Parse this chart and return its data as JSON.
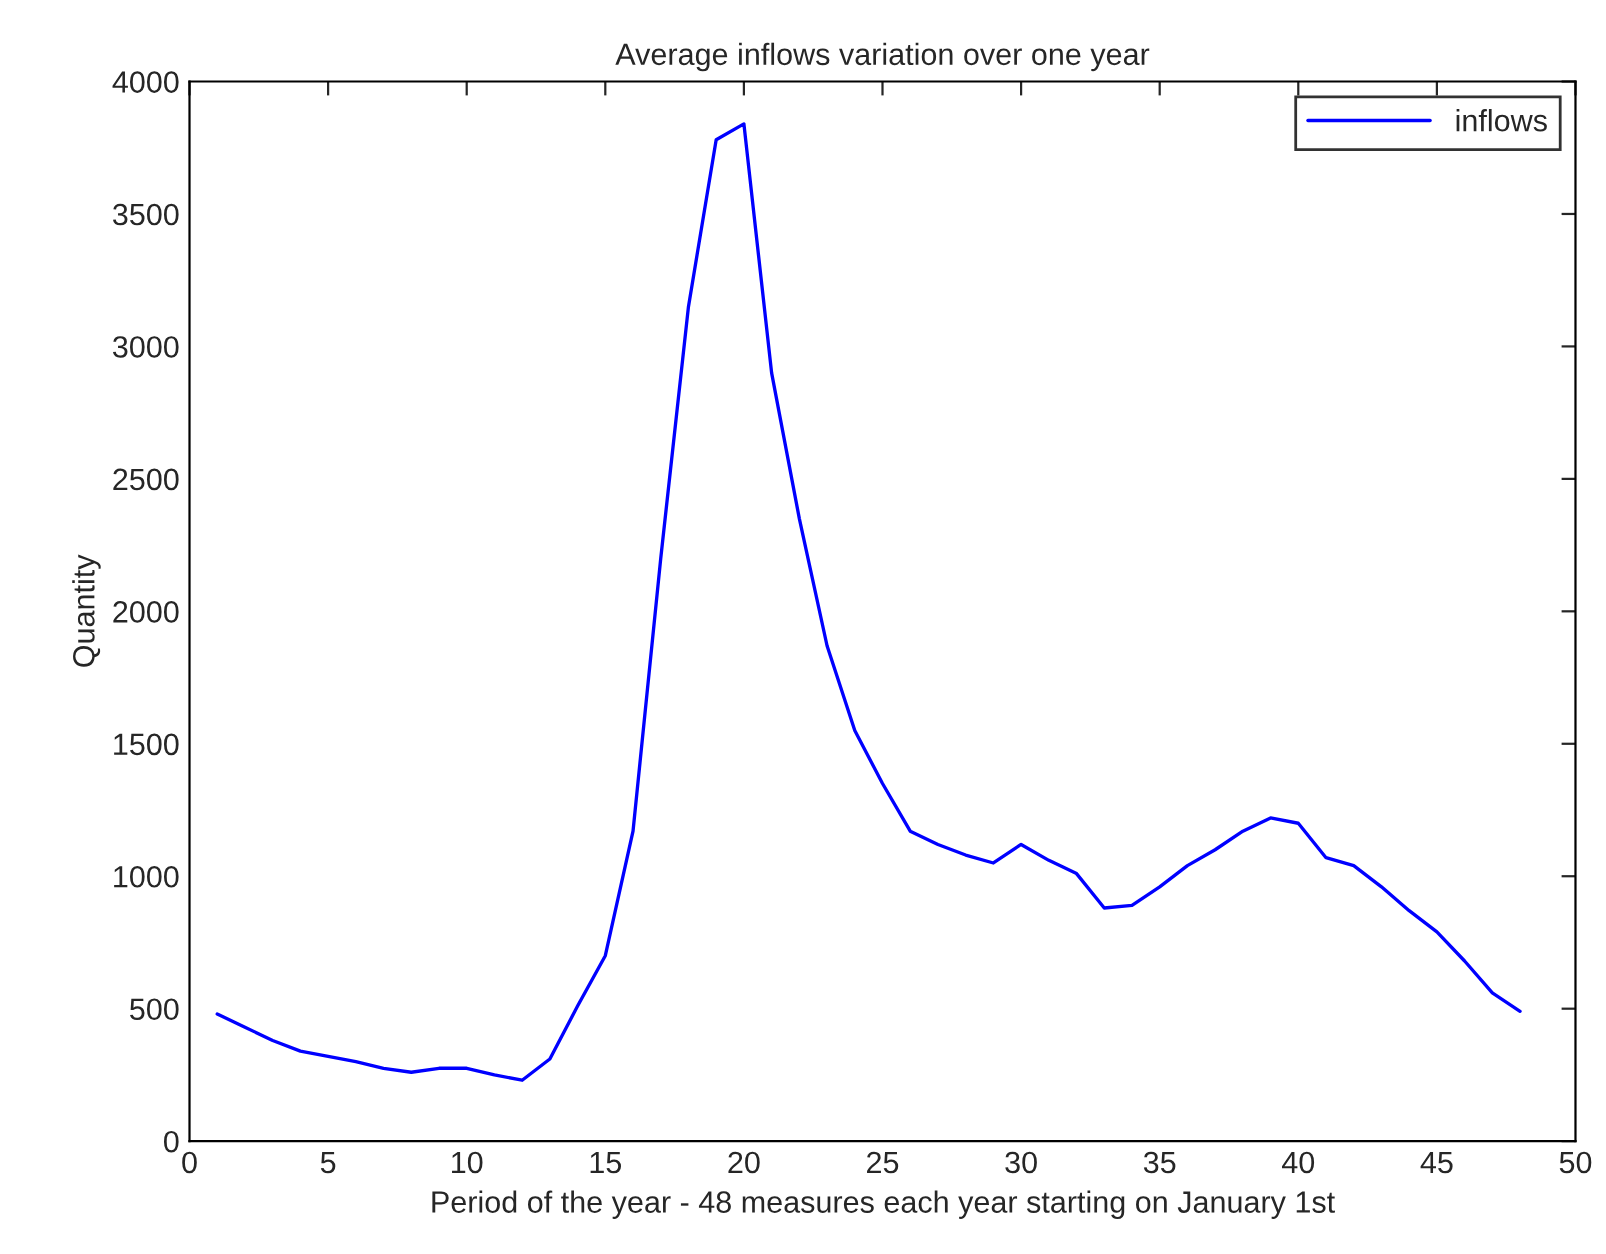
{
  "chart_data": {
    "type": "line",
    "title": "Average inflows variation over one year",
    "xlabel": "Period of the year - 48 measures each year starting on January 1st",
    "ylabel": "Quantity",
    "x": [
      1,
      2,
      3,
      4,
      5,
      6,
      7,
      8,
      9,
      10,
      11,
      12,
      13,
      14,
      15,
      16,
      17,
      18,
      19,
      20,
      21,
      22,
      23,
      24,
      25,
      26,
      27,
      28,
      29,
      30,
      31,
      32,
      33,
      34,
      35,
      36,
      37,
      38,
      39,
      40,
      41,
      42,
      43,
      44,
      45,
      46,
      47,
      48
    ],
    "series": [
      {
        "name": "inflows",
        "color": "#0000ff",
        "values": [
          480,
          430,
          380,
          340,
          320,
          300,
          275,
          260,
          275,
          275,
          250,
          230,
          310,
          510,
          700,
          1170,
          2200,
          3150,
          3780,
          3840,
          2900,
          2350,
          1870,
          1550,
          1350,
          1170,
          1120,
          1080,
          1050,
          1120,
          1060,
          1010,
          880,
          890,
          960,
          1040,
          1100,
          1170,
          1220,
          1200,
          1070,
          1040,
          960,
          870,
          790,
          680,
          560,
          490
        ]
      }
    ],
    "xlim": [
      0,
      50
    ],
    "xticks": [
      0,
      5,
      10,
      15,
      20,
      25,
      30,
      35,
      40,
      45,
      50
    ],
    "ylim": [
      0,
      4000
    ],
    "yticks": [
      0,
      500,
      1000,
      1500,
      2000,
      2500,
      3000,
      3500,
      4000
    ],
    "grid": false,
    "legend": "top right",
    "line_style": "solid",
    "marker": "none"
  }
}
